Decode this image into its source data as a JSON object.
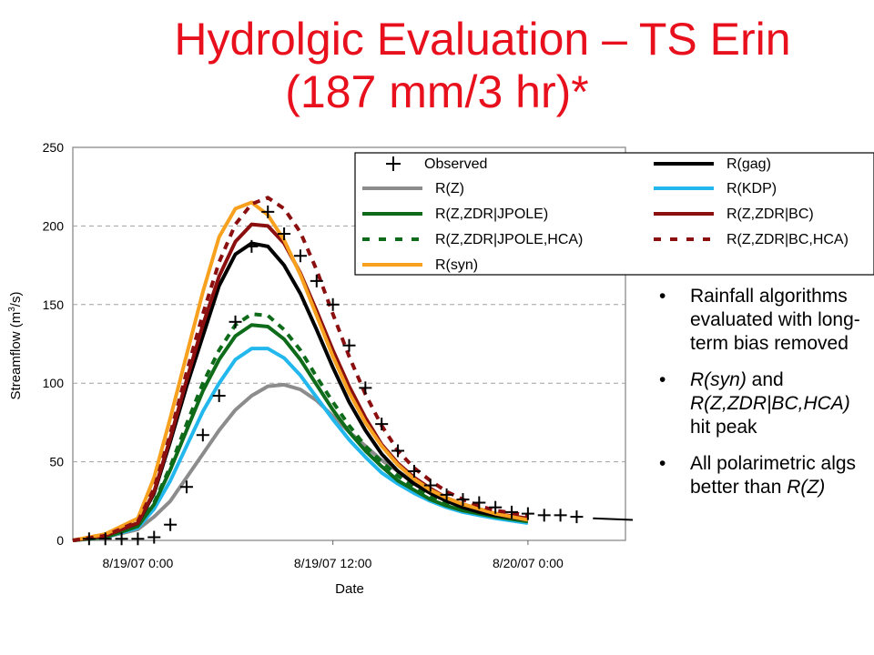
{
  "slide": {
    "title_line1": "Hydrolgic Evaluation – TS Erin",
    "title_line2": "(187 mm/3 hr)*"
  },
  "bullets": [
    {
      "parts": [
        {
          "text": "Rainfall algorithms evaluated with long-term bias removed",
          "italic": false
        }
      ]
    },
    {
      "parts": [
        {
          "text": "R(syn)",
          "italic": true
        },
        {
          "text": " and ",
          "italic": false
        },
        {
          "text": "R(Z,ZDR|BC,HCA)",
          "italic": true
        },
        {
          "text": " hit peak",
          "italic": false
        }
      ]
    },
    {
      "parts": [
        {
          "text": "All polarimetric algs better than ",
          "italic": false
        },
        {
          "text": "R(Z)",
          "italic": true
        }
      ]
    }
  ],
  "chart_data": {
    "type": "line",
    "xlabel": "Date",
    "ylabel": "Streamflow (m3/s)",
    "ylim": [
      0,
      250
    ],
    "yticks": [
      0,
      50,
      100,
      150,
      200,
      250
    ],
    "xlim_hours": [
      -4,
      30
    ],
    "xticks": [
      {
        "hour": 0,
        "label": "8/19/07 0:00"
      },
      {
        "hour": 12,
        "label": "8/19/07 12:00"
      },
      {
        "hour": 24,
        "label": "8/20/07 0:00"
      }
    ],
    "grid": "horizontal dashed",
    "legend_position": "top-right",
    "hours": [
      -4,
      -2,
      0,
      1,
      2,
      3,
      4,
      5,
      6,
      7,
      8,
      9,
      10,
      11,
      12,
      13,
      14,
      15,
      16,
      17,
      18,
      19,
      20,
      21,
      22,
      23,
      24,
      25,
      26,
      27,
      28,
      29,
      30
    ],
    "series": [
      {
        "name": "Observed",
        "style": "marker",
        "color": "#000000",
        "points": [
          [
            -3,
            1
          ],
          [
            -2,
            1
          ],
          [
            -1,
            1
          ],
          [
            0,
            1
          ],
          [
            1,
            2
          ],
          [
            2,
            10
          ],
          [
            3,
            34
          ],
          [
            4,
            67
          ],
          [
            5,
            92
          ],
          [
            6,
            139
          ],
          [
            7,
            187
          ],
          [
            8,
            209
          ],
          [
            9,
            195
          ],
          [
            10,
            181
          ],
          [
            11,
            165
          ],
          [
            12,
            150
          ],
          [
            13,
            124
          ],
          [
            14,
            97
          ],
          [
            15,
            74
          ],
          [
            16,
            57
          ],
          [
            17,
            44
          ],
          [
            18,
            35
          ],
          [
            19,
            29
          ],
          [
            20,
            26
          ],
          [
            21,
            24
          ],
          [
            22,
            21
          ],
          [
            23,
            18
          ],
          [
            24,
            17
          ],
          [
            25,
            16
          ],
          [
            26,
            16
          ],
          [
            27,
            15
          ]
        ]
      },
      {
        "name": "R(gag)",
        "style": "solid",
        "color": "#000000",
        "values": [
          0,
          3,
          11,
          30,
          63,
          98,
          130,
          162,
          182,
          189,
          187,
          175,
          157,
          134,
          110,
          88,
          70,
          55,
          44,
          36,
          30,
          25,
          21,
          18,
          16,
          13
        ]
      },
      {
        "name": "R(Z)",
        "style": "solid",
        "color": "#8c8c8c",
        "values": [
          0,
          2,
          7,
          15,
          25,
          40,
          55,
          70,
          83,
          92,
          98,
          99,
          96,
          89,
          79,
          69,
          60,
          51,
          44,
          37,
          31,
          26,
          22,
          19,
          16,
          12
        ]
      },
      {
        "name": "R(KDP)",
        "style": "solid",
        "color": "#22b8ee",
        "values": [
          0,
          2,
          8,
          20,
          38,
          60,
          82,
          100,
          115,
          122,
          122,
          116,
          105,
          91,
          77,
          64,
          53,
          43,
          36,
          30,
          25,
          21,
          18,
          16,
          14,
          11
        ]
      },
      {
        "name": "R(Z,ZDR|JPOLE)",
        "style": "solid",
        "color": "#0e6b19",
        "values": [
          0,
          2,
          9,
          23,
          45,
          70,
          95,
          115,
          130,
          137,
          136,
          128,
          115,
          99,
          83,
          69,
          57,
          47,
          38,
          32,
          26,
          22,
          19,
          17,
          15,
          12
        ]
      },
      {
        "name": "R(Z,ZDR|BC)",
        "style": "solid",
        "color": "#8b0f0f",
        "values": [
          0,
          3,
          11,
          31,
          65,
          102,
          137,
          168,
          190,
          201,
          200,
          189,
          170,
          146,
          121,
          98,
          78,
          61,
          49,
          40,
          33,
          27,
          23,
          20,
          17,
          14
        ]
      },
      {
        "name": "R(Z,ZDR|JPOLE,HCA)",
        "style": "dashed",
        "color": "#0e6b19",
        "values": [
          0,
          2,
          9,
          24,
          47,
          74,
          100,
          121,
          137,
          144,
          143,
          134,
          121,
          104,
          88,
          73,
          60,
          50,
          41,
          34,
          28,
          24,
          20,
          18,
          16,
          13
        ]
      },
      {
        "name": "R(Z,ZDR|BC,HCA)",
        "style": "dashed",
        "color": "#8b0f0f",
        "values": [
          0,
          3,
          12,
          33,
          68,
          107,
          144,
          177,
          201,
          214,
          218,
          211,
          196,
          172,
          144,
          117,
          93,
          73,
          57,
          46,
          38,
          31,
          26,
          22,
          19,
          16
        ]
      },
      {
        "name": "R(syn)",
        "style": "solid",
        "color": "#f7a11f",
        "values": [
          0,
          4,
          14,
          40,
          78,
          118,
          158,
          193,
          211,
          215,
          207,
          191,
          169,
          143,
          117,
          94,
          75,
          60,
          48,
          39,
          32,
          27,
          23,
          20,
          17,
          13
        ]
      }
    ],
    "line_hours": [
      -4,
      -2,
      0,
      1,
      2,
      3,
      4,
      5,
      6,
      7,
      8,
      9,
      10,
      11,
      12,
      13,
      14,
      15,
      16,
      17,
      18,
      19,
      20,
      21,
      22,
      24
    ]
  }
}
